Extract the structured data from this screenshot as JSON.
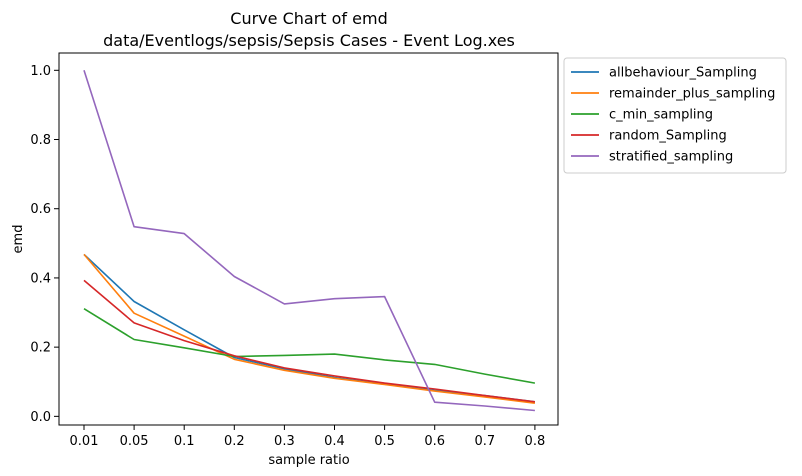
{
  "chart_data": {
    "type": "line",
    "title": "Curve Chart of emd",
    "subtitle": "data/Eventlogs/sepsis/Sepsis Cases - Event Log.xes",
    "xlabel": "sample ratio",
    "ylabel": "emd",
    "categories": [
      "0.01",
      "0.05",
      "0.1",
      "0.2",
      "0.3",
      "0.4",
      "0.5",
      "0.6",
      "0.7",
      "0.8"
    ],
    "ylim": [
      -0.025,
      1.05
    ],
    "yticks": [
      "0.0",
      "0.2",
      "0.4",
      "0.6",
      "0.8",
      "1.0"
    ],
    "grid": false,
    "legend_position": "outside-top-right",
    "series": [
      {
        "name": "allbehaviour_Sampling",
        "color": "#1f77b4",
        "values": [
          0.468,
          0.332,
          0.25,
          0.17,
          0.137,
          0.112,
          0.093,
          0.075,
          0.06,
          0.042
        ]
      },
      {
        "name": "remainder_plus_sampling",
        "color": "#ff7f0e",
        "values": [
          0.468,
          0.298,
          0.232,
          0.165,
          0.133,
          0.11,
          0.092,
          0.073,
          0.056,
          0.038
        ]
      },
      {
        "name": "c_min_sampling",
        "color": "#2ca02c",
        "values": [
          0.311,
          0.222,
          0.198,
          0.173,
          0.176,
          0.18,
          0.163,
          0.15,
          0.122,
          0.096
        ]
      },
      {
        "name": "random_Sampling",
        "color": "#d62728",
        "values": [
          0.393,
          0.27,
          0.219,
          0.175,
          0.14,
          0.117,
          0.096,
          0.079,
          0.06,
          0.042
        ]
      },
      {
        "name": "stratified_sampling",
        "color": "#9467bd",
        "values": [
          1.0,
          0.548,
          0.528,
          0.404,
          0.325,
          0.34,
          0.346,
          0.041,
          0.03,
          0.017
        ]
      }
    ]
  }
}
